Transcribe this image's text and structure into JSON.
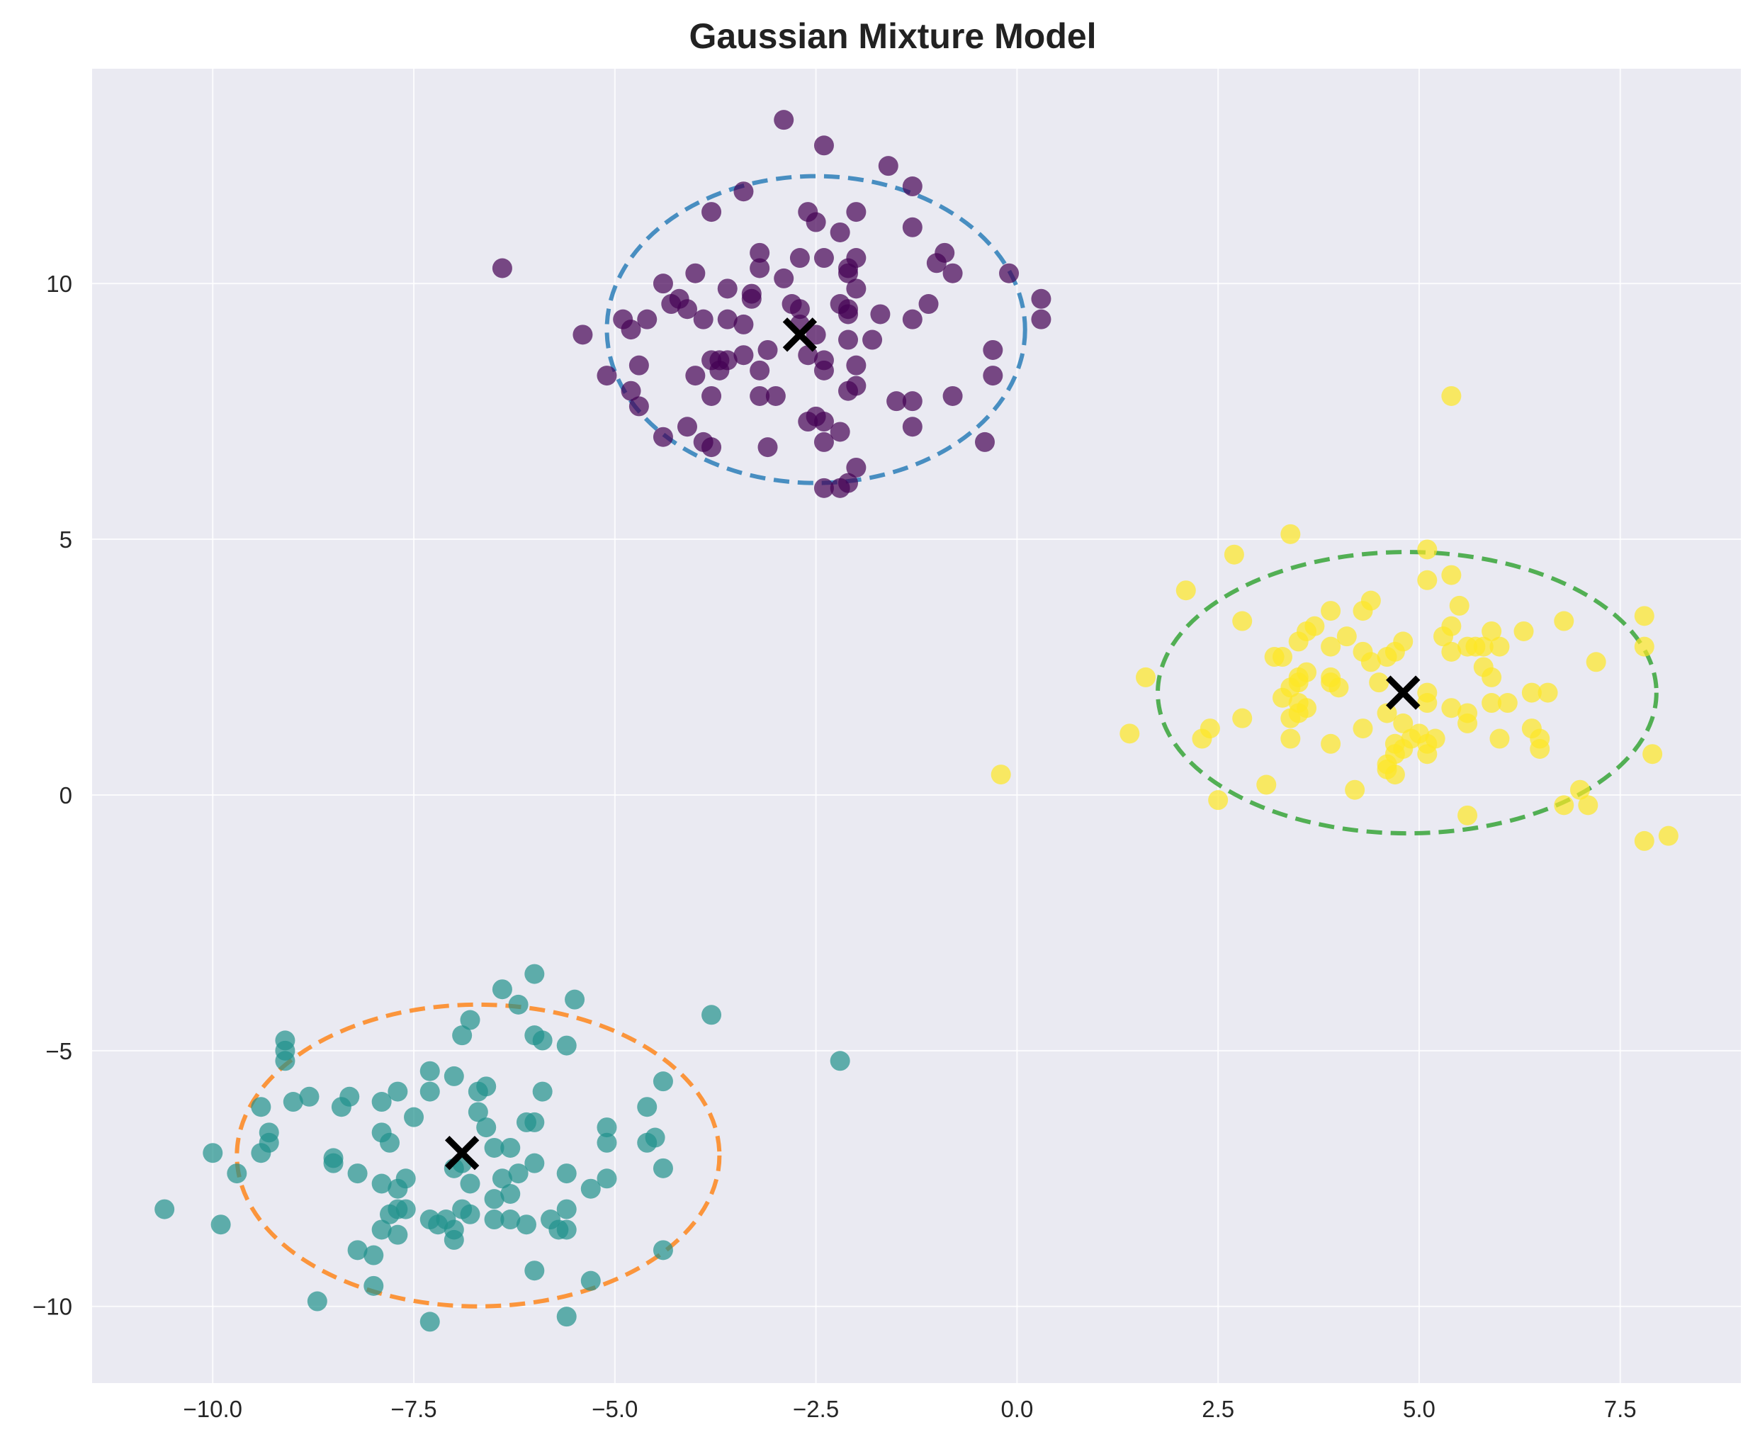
{
  "chart_data": {
    "type": "scatter",
    "title": "Gaussian Mixture Model",
    "xlabel": "",
    "ylabel": "",
    "xlim": [
      -11.5,
      9.0
    ],
    "ylim": [
      -11.5,
      14.2
    ],
    "grid": true,
    "xticks": [
      -10.0,
      -7.5,
      -5.0,
      -2.5,
      0.0,
      2.5,
      5.0,
      7.5
    ],
    "xtick_labels": [
      "−10.0",
      "−7.5",
      "−5.0",
      "−2.5",
      "0.0",
      "2.5",
      "5.0",
      "7.5"
    ],
    "yticks": [
      -10,
      -5,
      0,
      5,
      10
    ],
    "ytick_labels": [
      "−10",
      "−5",
      "0",
      "5",
      "10"
    ],
    "colors": {
      "plot_background": "#eaeaf2",
      "grid": "#ffffff",
      "cluster_purple": "#440154",
      "cluster_teal": "#21918c",
      "cluster_yellow": "#fde725",
      "ellipse_blue": "#1f77b4",
      "ellipse_orange": "#ff7f0e",
      "ellipse_green": "#2ca02c",
      "centroid_marker": "#000000"
    },
    "series": [
      {
        "color": "#440154",
        "points": [
          [
            -2.9,
            13.2
          ],
          [
            -2.4,
            12.7
          ],
          [
            -1.6,
            12.3
          ],
          [
            -1.3,
            11.9
          ],
          [
            -3.4,
            11.8
          ],
          [
            -3.8,
            11.4
          ],
          [
            -2.6,
            11.4
          ],
          [
            -2.0,
            11.4
          ],
          [
            -2.5,
            11.2
          ],
          [
            -1.3,
            11.1
          ],
          [
            -2.2,
            11.0
          ],
          [
            -3.2,
            10.6
          ],
          [
            -0.9,
            10.6
          ],
          [
            -2.7,
            10.5
          ],
          [
            -2.4,
            10.5
          ],
          [
            -2.0,
            10.5
          ],
          [
            -1.0,
            10.4
          ],
          [
            -3.2,
            10.3
          ],
          [
            -2.1,
            10.3
          ],
          [
            -6.4,
            10.3
          ],
          [
            -2.1,
            10.2
          ],
          [
            -4.0,
            10.2
          ],
          [
            -0.8,
            10.2
          ],
          [
            -0.1,
            10.2
          ],
          [
            -2.9,
            10.1
          ],
          [
            -4.4,
            10.0
          ],
          [
            -3.6,
            9.9
          ],
          [
            -2.0,
            9.9
          ],
          [
            -3.3,
            9.8
          ],
          [
            -4.2,
            9.7
          ],
          [
            -3.3,
            9.7
          ],
          [
            0.3,
            9.7
          ],
          [
            -4.3,
            9.6
          ],
          [
            -2.8,
            9.6
          ],
          [
            -2.2,
            9.6
          ],
          [
            -1.1,
            9.6
          ],
          [
            -2.1,
            9.5
          ],
          [
            -4.1,
            9.5
          ],
          [
            -2.7,
            9.5
          ],
          [
            -2.1,
            9.4
          ],
          [
            -1.7,
            9.4
          ],
          [
            -3.6,
            9.3
          ],
          [
            -3.9,
            9.3
          ],
          [
            -4.6,
            9.3
          ],
          [
            -1.3,
            9.3
          ],
          [
            -4.9,
            9.3
          ],
          [
            -2.7,
            9.2
          ],
          [
            -3.4,
            9.2
          ],
          [
            -4.8,
            9.1
          ],
          [
            -2.5,
            9.0
          ],
          [
            0.3,
            9.3
          ],
          [
            -5.4,
            9.0
          ],
          [
            -2.1,
            8.9
          ],
          [
            -1.8,
            8.9
          ],
          [
            -3.1,
            8.7
          ],
          [
            -0.3,
            8.7
          ],
          [
            -2.6,
            8.6
          ],
          [
            -2.4,
            8.5
          ],
          [
            -3.7,
            8.5
          ],
          [
            -3.6,
            8.5
          ],
          [
            -3.4,
            8.6
          ],
          [
            -3.8,
            8.5
          ],
          [
            -2.0,
            8.4
          ],
          [
            -4.7,
            8.4
          ],
          [
            -3.2,
            8.3
          ],
          [
            -3.7,
            8.3
          ],
          [
            -2.4,
            8.3
          ],
          [
            -4.0,
            8.2
          ],
          [
            -5.1,
            8.2
          ],
          [
            -0.3,
            8.2
          ],
          [
            -2.0,
            8.0
          ],
          [
            -4.8,
            7.9
          ],
          [
            -2.1,
            7.9
          ],
          [
            -3.0,
            7.8
          ],
          [
            -3.2,
            7.8
          ],
          [
            -3.8,
            7.8
          ],
          [
            -0.8,
            7.8
          ],
          [
            -1.5,
            7.7
          ],
          [
            -1.3,
            7.7
          ],
          [
            -4.7,
            7.6
          ],
          [
            -2.5,
            7.4
          ],
          [
            -2.4,
            7.3
          ],
          [
            -2.6,
            7.3
          ],
          [
            -1.3,
            7.2
          ],
          [
            -4.1,
            7.2
          ],
          [
            -2.2,
            7.1
          ],
          [
            -4.4,
            7.0
          ],
          [
            -3.9,
            6.9
          ],
          [
            -0.4,
            6.9
          ],
          [
            -2.4,
            6.9
          ],
          [
            -3.1,
            6.8
          ],
          [
            -3.8,
            6.8
          ],
          [
            -2.0,
            6.4
          ],
          [
            -2.1,
            6.1
          ],
          [
            -2.4,
            6.0
          ],
          [
            -2.2,
            6.0
          ]
        ]
      },
      {
        "color": "#21918c",
        "points": [
          [
            -6.0,
            -3.5
          ],
          [
            -6.4,
            -3.8
          ],
          [
            -6.2,
            -4.1
          ],
          [
            -5.5,
            -4.0
          ],
          [
            -3.8,
            -4.3
          ],
          [
            -6.8,
            -4.4
          ],
          [
            -6.9,
            -4.7
          ],
          [
            -6.0,
            -4.7
          ],
          [
            -9.1,
            -4.8
          ],
          [
            -5.9,
            -4.8
          ],
          [
            -5.6,
            -4.9
          ],
          [
            -9.1,
            -5.0
          ],
          [
            -9.1,
            -5.2
          ],
          [
            -2.2,
            -5.2
          ],
          [
            -7.3,
            -5.4
          ],
          [
            -7.0,
            -5.5
          ],
          [
            -4.4,
            -5.6
          ],
          [
            -6.6,
            -5.7
          ],
          [
            -6.7,
            -5.8
          ],
          [
            -7.7,
            -5.8
          ],
          [
            -7.3,
            -5.8
          ],
          [
            -5.9,
            -5.8
          ],
          [
            -8.8,
            -5.9
          ],
          [
            -8.3,
            -5.9
          ],
          [
            -7.9,
            -6.0
          ],
          [
            -9.0,
            -6.0
          ],
          [
            -9.4,
            -6.1
          ],
          [
            -4.6,
            -6.1
          ],
          [
            -8.4,
            -6.1
          ],
          [
            -6.7,
            -6.2
          ],
          [
            -7.5,
            -6.3
          ],
          [
            -6.1,
            -6.4
          ],
          [
            -6.0,
            -6.4
          ],
          [
            -6.6,
            -6.5
          ],
          [
            -5.1,
            -6.5
          ],
          [
            -7.9,
            -6.6
          ],
          [
            -9.3,
            -6.6
          ],
          [
            -4.5,
            -6.7
          ],
          [
            -4.6,
            -6.8
          ],
          [
            -9.3,
            -6.8
          ],
          [
            -7.8,
            -6.8
          ],
          [
            -5.1,
            -6.8
          ],
          [
            -6.5,
            -6.9
          ],
          [
            -6.3,
            -6.9
          ],
          [
            -9.4,
            -7.0
          ],
          [
            -10.0,
            -7.0
          ],
          [
            -8.5,
            -7.1
          ],
          [
            -6.9,
            -7.2
          ],
          [
            -6.0,
            -7.2
          ],
          [
            -8.5,
            -7.2
          ],
          [
            -4.4,
            -7.3
          ],
          [
            -7.0,
            -7.3
          ],
          [
            -6.2,
            -7.4
          ],
          [
            -5.6,
            -7.4
          ],
          [
            -9.7,
            -7.4
          ],
          [
            -8.2,
            -7.4
          ],
          [
            -6.4,
            -7.5
          ],
          [
            -5.1,
            -7.5
          ],
          [
            -7.6,
            -7.5
          ],
          [
            -6.8,
            -7.6
          ],
          [
            -7.9,
            -7.6
          ],
          [
            -7.7,
            -7.7
          ],
          [
            -5.3,
            -7.7
          ],
          [
            -6.3,
            -7.8
          ],
          [
            -6.5,
            -7.9
          ],
          [
            -7.7,
            -8.1
          ],
          [
            -10.6,
            -8.1
          ],
          [
            -7.6,
            -8.1
          ],
          [
            -5.6,
            -8.1
          ],
          [
            -7.8,
            -8.2
          ],
          [
            -6.8,
            -8.2
          ],
          [
            -6.9,
            -8.1
          ],
          [
            -6.5,
            -8.3
          ],
          [
            -6.3,
            -8.3
          ],
          [
            -5.8,
            -8.3
          ],
          [
            -6.1,
            -8.4
          ],
          [
            -7.3,
            -8.3
          ],
          [
            -7.1,
            -8.3
          ],
          [
            -7.2,
            -8.4
          ],
          [
            -7.0,
            -8.5
          ],
          [
            -9.9,
            -8.4
          ],
          [
            -7.9,
            -8.5
          ],
          [
            -5.7,
            -8.5
          ],
          [
            -5.6,
            -8.5
          ],
          [
            -7.7,
            -8.6
          ],
          [
            -7.0,
            -8.7
          ],
          [
            -8.2,
            -8.9
          ],
          [
            -4.4,
            -8.9
          ],
          [
            -8.0,
            -9.0
          ],
          [
            -6.0,
            -9.3
          ],
          [
            -5.3,
            -9.5
          ],
          [
            -8.0,
            -9.6
          ],
          [
            -8.7,
            -9.9
          ],
          [
            -5.6,
            -10.2
          ],
          [
            -7.3,
            -10.3
          ]
        ]
      },
      {
        "color": "#fde725",
        "points": [
          [
            5.4,
            7.8
          ],
          [
            3.4,
            5.1
          ],
          [
            5.1,
            4.8
          ],
          [
            2.7,
            4.7
          ],
          [
            5.1,
            4.2
          ],
          [
            5.4,
            4.3
          ],
          [
            2.1,
            4.0
          ],
          [
            4.4,
            3.8
          ],
          [
            4.3,
            3.6
          ],
          [
            3.9,
            3.6
          ],
          [
            5.5,
            3.7
          ],
          [
            7.8,
            3.5
          ],
          [
            6.8,
            3.4
          ],
          [
            2.8,
            3.4
          ],
          [
            5.4,
            3.3
          ],
          [
            3.7,
            3.3
          ],
          [
            3.6,
            3.2
          ],
          [
            5.3,
            3.1
          ],
          [
            5.9,
            3.2
          ],
          [
            6.3,
            3.2
          ],
          [
            4.1,
            3.1
          ],
          [
            3.5,
            3.0
          ],
          [
            4.8,
            3.0
          ],
          [
            6.0,
            2.9
          ],
          [
            7.8,
            2.9
          ],
          [
            5.6,
            2.9
          ],
          [
            5.8,
            2.9
          ],
          [
            5.7,
            2.9
          ],
          [
            3.9,
            2.9
          ],
          [
            4.3,
            2.8
          ],
          [
            4.7,
            2.8
          ],
          [
            5.4,
            2.8
          ],
          [
            3.3,
            2.7
          ],
          [
            3.2,
            2.7
          ],
          [
            4.6,
            2.7
          ],
          [
            4.4,
            2.6
          ],
          [
            7.2,
            2.6
          ],
          [
            5.8,
            2.5
          ],
          [
            3.6,
            2.4
          ],
          [
            3.5,
            2.3
          ],
          [
            3.9,
            2.3
          ],
          [
            5.9,
            2.3
          ],
          [
            3.5,
            2.2
          ],
          [
            3.9,
            2.2
          ],
          [
            4.5,
            2.2
          ],
          [
            1.6,
            2.3
          ],
          [
            4.0,
            2.1
          ],
          [
            3.4,
            2.1
          ],
          [
            5.1,
            2.0
          ],
          [
            6.4,
            2.0
          ],
          [
            6.6,
            2.0
          ],
          [
            3.3,
            1.9
          ],
          [
            3.5,
            1.8
          ],
          [
            3.6,
            1.7
          ],
          [
            5.1,
            1.8
          ],
          [
            5.9,
            1.8
          ],
          [
            6.1,
            1.8
          ],
          [
            5.4,
            1.7
          ],
          [
            3.5,
            1.6
          ],
          [
            5.6,
            1.6
          ],
          [
            2.8,
            1.5
          ],
          [
            3.4,
            1.5
          ],
          [
            4.6,
            1.6
          ],
          [
            5.6,
            1.4
          ],
          [
            4.8,
            1.4
          ],
          [
            6.4,
            1.3
          ],
          [
            2.4,
            1.3
          ],
          [
            4.3,
            1.3
          ],
          [
            1.4,
            1.2
          ],
          [
            5.0,
            1.2
          ],
          [
            4.9,
            1.1
          ],
          [
            6.0,
            1.1
          ],
          [
            5.2,
            1.1
          ],
          [
            6.5,
            1.1
          ],
          [
            2.3,
            1.1
          ],
          [
            3.4,
            1.1
          ],
          [
            3.9,
            1.0
          ],
          [
            4.7,
            1.0
          ],
          [
            5.1,
            1.0
          ],
          [
            6.5,
            0.9
          ],
          [
            4.8,
            0.9
          ],
          [
            4.7,
            0.8
          ],
          [
            7.9,
            0.8
          ],
          [
            5.1,
            0.8
          ],
          [
            4.6,
            0.6
          ],
          [
            -0.2,
            0.4
          ],
          [
            4.6,
            0.5
          ],
          [
            4.7,
            0.4
          ],
          [
            3.1,
            0.2
          ],
          [
            4.2,
            0.1
          ],
          [
            7.0,
            0.1
          ],
          [
            6.8,
            -0.2
          ],
          [
            7.1,
            -0.2
          ],
          [
            2.5,
            -0.1
          ],
          [
            5.6,
            -0.4
          ],
          [
            7.8,
            -0.9
          ],
          [
            8.1,
            -0.8
          ]
        ]
      }
    ],
    "ellipses": [
      {
        "color": "#1f77b4",
        "cx": -2.5,
        "cy": 9.1,
        "rx": 2.6,
        "ry": 3.0
      },
      {
        "color": "#ff7f0e",
        "cx": -6.7,
        "cy": -7.05,
        "rx": 3.0,
        "ry": 2.95
      },
      {
        "color": "#2ca02c",
        "cx": 4.85,
        "cy": 2.0,
        "rx": 3.1,
        "ry": 2.75
      }
    ],
    "centroids": [
      {
        "x": -2.7,
        "y": 9.0
      },
      {
        "x": -6.9,
        "y": -7.0
      },
      {
        "x": 4.8,
        "y": 2.0
      }
    ]
  }
}
